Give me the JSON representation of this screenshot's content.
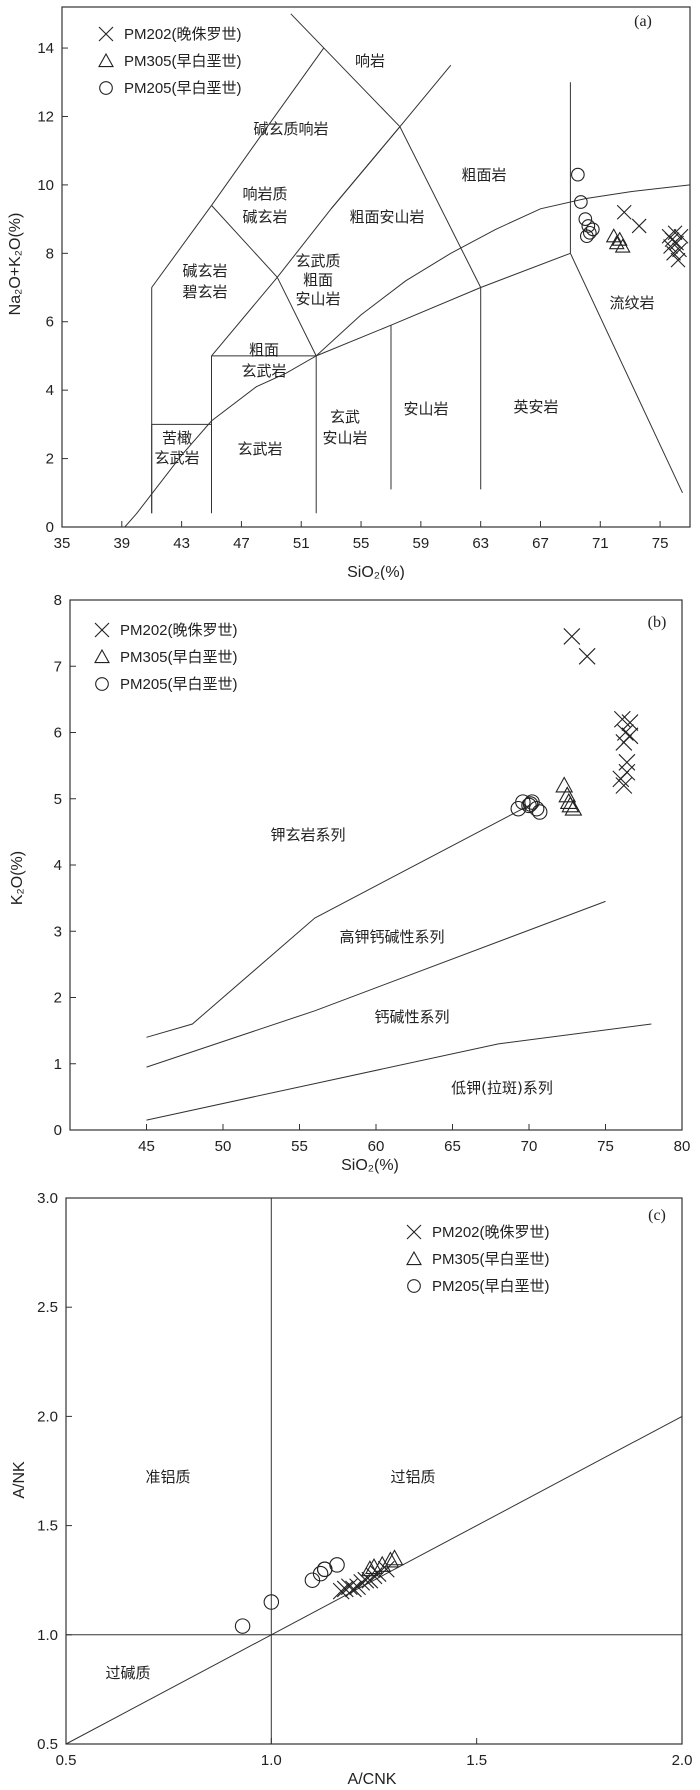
{
  "chart_data": [
    {
      "id": "tas",
      "type": "scatter",
      "panel_label": "(a)",
      "xlabel": "SiO₂(%)",
      "ylabel": "Na₂O+K₂O(%)",
      "xlim": [
        35,
        77
      ],
      "ylim": [
        0,
        15.2
      ],
      "xticks": [
        35,
        39,
        43,
        47,
        51,
        55,
        59,
        63,
        67,
        71,
        75
      ],
      "yticks": [
        0,
        2,
        4,
        6,
        8,
        10,
        12,
        14
      ],
      "legend": [
        "PM202(晚侏罗世)",
        "PM305(早白垩世)",
        "PM205(早白垩世)"
      ],
      "series": [
        {
          "name": "PM202(晚侏罗世)",
          "marker": "x",
          "points": [
            [
              72.6,
              9.2
            ],
            [
              73.6,
              8.8
            ],
            [
              75.6,
              8.5
            ],
            [
              75.7,
              8.2
            ],
            [
              75.8,
              8.4
            ],
            [
              75.9,
              8.0
            ],
            [
              76.0,
              8.6
            ],
            [
              76.1,
              8.3
            ],
            [
              76.2,
              7.8
            ],
            [
              76.3,
              8.1
            ],
            [
              76.4,
              8.5
            ]
          ]
        },
        {
          "name": "PM305(早白垩世)",
          "marker": "triangle",
          "points": [
            [
              71.9,
              8.5
            ],
            [
              72.1,
              8.3
            ],
            [
              72.3,
              8.4
            ],
            [
              72.5,
              8.2
            ]
          ]
        },
        {
          "name": "PM205(早白垩世)",
          "marker": "circle",
          "points": [
            [
              69.5,
              10.3
            ],
            [
              69.7,
              9.5
            ],
            [
              70.0,
              9.0
            ],
            [
              70.2,
              8.8
            ],
            [
              70.3,
              8.6
            ],
            [
              70.5,
              8.7
            ],
            [
              70.1,
              8.5
            ]
          ]
        }
      ],
      "region_labels": [
        "响岩",
        "碱玄质响岩",
        "响岩质",
        "碱玄岩",
        "粗面岩",
        "粗面安山岩",
        "玄武质",
        "粗面",
        "安山岩",
        "碱玄岩",
        "碧玄岩",
        "粗面",
        "玄武岩",
        "流纹岩",
        "苦橄",
        "玄武岩",
        "玄武岩",
        "玄武",
        "安山岩",
        "安山岩",
        "英安岩"
      ],
      "boundaries": [
        [
          [
            41,
            0.4
          ],
          [
            41,
            7
          ]
        ],
        [
          [
            41,
            7
          ],
          [
            45,
            9.4
          ]
        ],
        [
          [
            45,
            9.4
          ],
          [
            48.4,
            11.5
          ]
        ],
        [
          [
            48.4,
            11.5
          ],
          [
            52.5,
            14
          ]
        ],
        [
          [
            45,
            9.4
          ],
          [
            49.4,
            7.3
          ]
        ],
        [
          [
            49.4,
            7.3
          ],
          [
            53,
            9.3
          ]
        ],
        [
          [
            53,
            9.3
          ],
          [
            57.6,
            11.7
          ]
        ],
        [
          [
            57.6,
            11.7
          ],
          [
            50.3,
            15
          ]
        ],
        [
          [
            57.6,
            11.7
          ],
          [
            61,
            13.5
          ]
        ],
        [
          [
            57.6,
            11.7
          ],
          [
            63,
            7
          ]
        ],
        [
          [
            53,
            9.3
          ],
          [
            57.6,
            11.7
          ]
        ],
        [
          [
            45,
            5
          ],
          [
            49.4,
            7.3
          ]
        ],
        [
          [
            49.4,
            7.3
          ],
          [
            52,
            5
          ]
        ],
        [
          [
            45,
            5
          ],
          [
            52,
            5
          ]
        ],
        [
          [
            52,
            5
          ],
          [
            57,
            5.9
          ]
        ],
        [
          [
            57,
            5.9
          ],
          [
            63,
            7
          ]
        ],
        [
          [
            63,
            7
          ],
          [
            69,
            8
          ]
        ],
        [
          [
            69,
            8
          ],
          [
            69,
            13
          ]
        ],
        [
          [
            69,
            8
          ],
          [
            76.5,
            1
          ]
        ],
        [
          [
            45,
            0.4
          ],
          [
            45,
            5
          ]
        ],
        [
          [
            52,
            0.4
          ],
          [
            52,
            5
          ]
        ],
        [
          [
            57,
            1.1
          ],
          [
            57,
            5.9
          ]
        ],
        [
          [
            63,
            1.1
          ],
          [
            63,
            7
          ]
        ],
        [
          [
            41,
            3
          ],
          [
            45,
            3
          ]
        ],
        [
          [
            41,
            0.4
          ],
          [
            41,
            3
          ]
        ]
      ],
      "alkaline_curve": [
        [
          39.2,
          0
        ],
        [
          40,
          0.4
        ],
        [
          43,
          2.1
        ],
        [
          45,
          3.1
        ],
        [
          48,
          4.1
        ],
        [
          50,
          4.5
        ],
        [
          52,
          5
        ],
        [
          55,
          6.2
        ],
        [
          58,
          7.2
        ],
        [
          61,
          8
        ],
        [
          64,
          8.7
        ],
        [
          67,
          9.3
        ],
        [
          70,
          9.6
        ],
        [
          73,
          9.8
        ],
        [
          77,
          10
        ]
      ]
    },
    {
      "id": "k2o",
      "type": "scatter",
      "panel_label": "(b)",
      "xlabel": "SiO₂(%)",
      "ylabel": "K₂O(%)",
      "xlim": [
        40,
        80
      ],
      "ylim": [
        0,
        8
      ],
      "xticks": [
        45,
        50,
        55,
        60,
        65,
        70,
        75,
        80
      ],
      "yticks": [
        0,
        1,
        2,
        3,
        4,
        5,
        6,
        7,
        8
      ],
      "legend": [
        "PM202(晚侏罗世)",
        "PM305(早白垩世)",
        "PM205(早白垩世)"
      ],
      "series": [
        {
          "name": "PM202(晚侏罗世)",
          "marker": "x",
          "points": [
            [
              72.8,
              7.45
            ],
            [
              73.8,
              7.15
            ],
            [
              76.1,
              6.2
            ],
            [
              76.3,
              6.0
            ],
            [
              76.2,
              5.85
            ],
            [
              76.4,
              5.55
            ],
            [
              76.0,
              5.3
            ],
            [
              76.2,
              5.2
            ],
            [
              76.4,
              5.4
            ],
            [
              76.6,
              5.95
            ],
            [
              76.6,
              6.15
            ]
          ]
        },
        {
          "name": "PM305(早白垩世)",
          "marker": "triangle",
          "points": [
            [
              72.3,
              5.2
            ],
            [
              72.5,
              5.05
            ],
            [
              72.6,
              4.95
            ],
            [
              72.7,
              4.9
            ],
            [
              72.9,
              4.85
            ]
          ]
        },
        {
          "name": "PM205(早白垩世)",
          "marker": "circle",
          "points": [
            [
              69.3,
              4.85
            ],
            [
              69.6,
              4.95
            ],
            [
              70.0,
              4.9
            ],
            [
              70.2,
              4.95
            ],
            [
              70.5,
              4.85
            ],
            [
              70.7,
              4.8
            ],
            [
              70.1,
              4.92
            ]
          ]
        }
      ],
      "series_lines": [
        [
          [
            45,
            1.4
          ],
          [
            48,
            1.6
          ],
          [
            56,
            3.2
          ],
          [
            70,
            4.9
          ]
        ],
        [
          [
            45,
            0.95
          ],
          [
            56,
            1.8
          ],
          [
            75,
            3.45
          ]
        ],
        [
          [
            45,
            0.15
          ],
          [
            56,
            0.7
          ],
          [
            68,
            1.3
          ],
          [
            78,
            1.6
          ]
        ]
      ],
      "region_labels": [
        "钾玄岩系列",
        "高钾钙碱性系列",
        "钙碱性系列",
        "低钾(拉斑)系列"
      ]
    },
    {
      "id": "acnk",
      "type": "scatter",
      "panel_label": "(c)",
      "xlabel": "A/CNK",
      "ylabel": "A/NK",
      "xlim": [
        0.5,
        2.0
      ],
      "ylim": [
        0.5,
        3.0
      ],
      "xticks": [
        0.5,
        1.0,
        1.5,
        2.0
      ],
      "xticklabels": [
        "0.5",
        "1.0",
        "1.5",
        "2.0"
      ],
      "yticks": [
        0.5,
        1.0,
        1.5,
        2.0,
        2.5,
        3.0
      ],
      "yticklabels": [
        "0.5",
        "1.0",
        "1.5",
        "2.0",
        "2.5",
        "3.0"
      ],
      "legend": [
        "PM202(晚侏罗世)",
        "PM305(早白垩世)",
        "PM205(早白垩世)"
      ],
      "series": [
        {
          "name": "PM202(晚侏罗世)",
          "marker": "x",
          "points": [
            [
              1.17,
              1.2
            ],
            [
              1.18,
              1.21
            ],
            [
              1.19,
              1.22
            ],
            [
              1.2,
              1.21
            ],
            [
              1.21,
              1.22
            ],
            [
              1.22,
              1.24
            ],
            [
              1.23,
              1.25
            ],
            [
              1.24,
              1.25
            ],
            [
              1.25,
              1.27
            ],
            [
              1.26,
              1.28
            ],
            [
              1.28,
              1.3
            ]
          ]
        },
        {
          "name": "PM305(早白垩世)",
          "marker": "triangle",
          "points": [
            [
              1.24,
              1.3
            ],
            [
              1.25,
              1.31
            ],
            [
              1.27,
              1.32
            ],
            [
              1.29,
              1.34
            ],
            [
              1.3,
              1.35
            ]
          ]
        },
        {
          "name": "PM205(早白垩世)",
          "marker": "circle",
          "points": [
            [
              0.93,
              1.04
            ],
            [
              1.0,
              1.15
            ],
            [
              1.1,
              1.25
            ],
            [
              1.12,
              1.28
            ],
            [
              1.13,
              1.3
            ],
            [
              1.13,
              1.3
            ],
            [
              1.16,
              1.32
            ]
          ]
        }
      ],
      "reference_lines": [
        [
          [
            1.0,
            0.5
          ],
          [
            1.0,
            3.0
          ]
        ],
        [
          [
            0.5,
            1.0
          ],
          [
            2.0,
            1.0
          ]
        ],
        [
          [
            0.5,
            0.5
          ],
          [
            2.0,
            2.0
          ]
        ]
      ],
      "region_labels": [
        "准铝质",
        "过铝质",
        "过碱质"
      ]
    }
  ]
}
